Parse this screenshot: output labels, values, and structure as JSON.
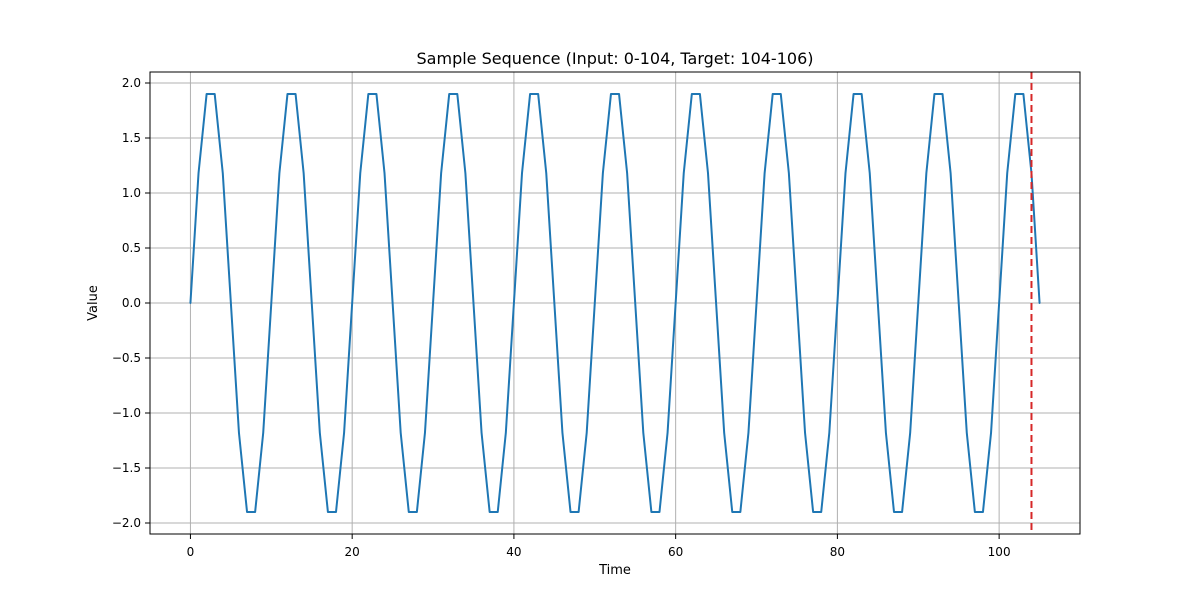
{
  "chart_data": {
    "type": "line",
    "title": "Sample Sequence (Input: 0-104, Target: 104-106)",
    "xlabel": "Time",
    "ylabel": "Value",
    "xlim": [
      -5,
      110
    ],
    "ylim": [
      -2.1,
      2.1
    ],
    "grid": true,
    "x_ticks": [
      0,
      20,
      40,
      60,
      80,
      100
    ],
    "y_ticks": [
      -2.0,
      -1.5,
      -1.0,
      -0.5,
      0.0,
      0.5,
      1.0,
      1.5,
      2.0
    ],
    "x_tick_labels": [
      "0",
      "20",
      "40",
      "60",
      "80",
      "100"
    ],
    "y_tick_labels": [
      "−2.0",
      "−1.5",
      "−1.0",
      "−0.5",
      "0.0",
      "0.5",
      "1.0",
      "1.5",
      "2.0"
    ],
    "series": [
      {
        "color": "#1f77b4",
        "x": [
          0,
          1,
          2,
          3,
          4,
          5,
          6,
          7,
          8,
          9,
          10,
          11,
          12,
          13,
          14,
          15,
          16,
          17,
          18,
          19,
          20,
          21,
          22,
          23,
          24,
          25,
          26,
          27,
          28,
          29,
          30,
          31,
          32,
          33,
          34,
          35,
          36,
          37,
          38,
          39,
          40,
          41,
          42,
          43,
          44,
          45,
          46,
          47,
          48,
          49,
          50,
          51,
          52,
          53,
          54,
          55,
          56,
          57,
          58,
          59,
          60,
          61,
          62,
          63,
          64,
          65,
          66,
          67,
          68,
          69,
          70,
          71,
          72,
          73,
          74,
          75,
          76,
          77,
          78,
          79,
          80,
          81,
          82,
          83,
          84,
          85,
          86,
          87,
          88,
          89,
          90,
          91,
          92,
          93,
          94,
          95,
          96,
          97,
          98,
          99,
          100,
          101,
          102,
          103,
          104,
          105
        ],
        "y": [
          0.0,
          1.18,
          1.9,
          1.9,
          1.18,
          0.0,
          -1.18,
          -1.9,
          -1.9,
          -1.18,
          0.0,
          1.18,
          1.9,
          1.9,
          1.18,
          0.0,
          -1.18,
          -1.9,
          -1.9,
          -1.18,
          0.0,
          1.18,
          1.9,
          1.9,
          1.18,
          0.0,
          -1.18,
          -1.9,
          -1.9,
          -1.18,
          0.0,
          1.18,
          1.9,
          1.9,
          1.18,
          0.0,
          -1.18,
          -1.9,
          -1.9,
          -1.18,
          0.0,
          1.18,
          1.9,
          1.9,
          1.18,
          0.0,
          -1.18,
          -1.9,
          -1.9,
          -1.18,
          0.0,
          1.18,
          1.9,
          1.9,
          1.18,
          0.0,
          -1.18,
          -1.9,
          -1.9,
          -1.18,
          0.0,
          1.18,
          1.9,
          1.9,
          1.18,
          0.0,
          -1.18,
          -1.9,
          -1.9,
          -1.18,
          0.0,
          1.18,
          1.9,
          1.9,
          1.18,
          0.0,
          -1.18,
          -1.9,
          -1.9,
          -1.18,
          0.0,
          1.18,
          1.9,
          1.9,
          1.18,
          0.0,
          -1.18,
          -1.9,
          -1.9,
          -1.18,
          0.0,
          1.18,
          1.9,
          1.9,
          1.18,
          0.0,
          -1.18,
          -1.9,
          -1.9,
          -1.18,
          0.0,
          1.18,
          1.9,
          1.9,
          1.18,
          0.0
        ]
      }
    ],
    "vertical_line": {
      "x": 104,
      "color": "#d62728",
      "style": "dashed"
    }
  },
  "colors": {
    "grid": "#b0b0b0",
    "axes": "#000000",
    "background": "#ffffff"
  }
}
